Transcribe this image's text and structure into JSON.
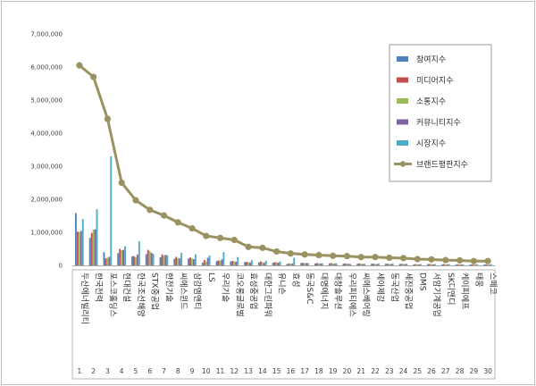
{
  "chart_data": {
    "type": "bar",
    "categories": [
      "두산에너빌리티",
      "한국전력",
      "포스코홀딩스",
      "현대건설",
      "한국조선해양",
      "STX중공업",
      "한전기술",
      "씨에스윈드",
      "삼강엠앤티",
      "LS",
      "우리기술",
      "코오롱글로벌",
      "효성중공업",
      "대한그린파워",
      "유니슨",
      "효성",
      "동국S&C",
      "대명에너지",
      "대창솔루션",
      "우리피티에스",
      "씨에스베어링",
      "세아제강",
      "동국산업",
      "세진중공업",
      "DMS",
      "서암기계공업",
      "SK디앤디",
      "케이피에프",
      "태웅",
      "스페코"
    ],
    "ranks": [
      "1",
      "2",
      "3",
      "4",
      "5",
      "6",
      "7",
      "8",
      "9",
      "10",
      "11",
      "12",
      "13",
      "14",
      "15",
      "16",
      "17",
      "18",
      "19",
      "20",
      "21",
      "22",
      "23",
      "24",
      "25",
      "26",
      "27",
      "28",
      "29",
      "30"
    ],
    "ylim": [
      0,
      7000000
    ],
    "yticks": [
      "0",
      "1,000,000",
      "2,000,000",
      "3,000,000",
      "4,000,000",
      "5,000,000",
      "6,000,000",
      "7,000,000"
    ],
    "grid": false,
    "legend_position": "right",
    "series": [
      {
        "name": "참여지수",
        "kind": "bar",
        "color": "#4f81bd",
        "values": [
          1580000,
          830000,
          400000,
          370000,
          270000,
          340000,
          240000,
          200000,
          210000,
          80000,
          130000,
          120000,
          100000,
          90000,
          80000,
          40000,
          70000,
          60000,
          60000,
          50000,
          50000,
          50000,
          50000,
          40000,
          30000,
          40000,
          30000,
          30000,
          30000,
          30000
        ]
      },
      {
        "name": "미디어지수",
        "kind": "bar",
        "color": "#c0504d",
        "values": [
          1020000,
          980000,
          210000,
          500000,
          280000,
          470000,
          330000,
          260000,
          240000,
          160000,
          150000,
          140000,
          110000,
          120000,
          100000,
          60000,
          80000,
          70000,
          70000,
          60000,
          60000,
          50000,
          50000,
          50000,
          40000,
          40000,
          40000,
          30000,
          30000,
          30000
        ]
      },
      {
        "name": "소통지수",
        "kind": "bar",
        "color": "#9bbb59",
        "values": [
          1010000,
          1080000,
          230000,
          460000,
          250000,
          430000,
          290000,
          220000,
          210000,
          120000,
          140000,
          120000,
          90000,
          100000,
          90000,
          50000,
          60000,
          60000,
          60000,
          50000,
          50000,
          40000,
          40000,
          40000,
          30000,
          40000,
          30000,
          30000,
          30000,
          30000
        ]
      },
      {
        "name": "커뮤니티지수",
        "kind": "bar",
        "color": "#8064a2",
        "values": [
          1040000,
          1090000,
          260000,
          470000,
          330000,
          380000,
          320000,
          210000,
          190000,
          230000,
          180000,
          110000,
          90000,
          80000,
          80000,
          60000,
          70000,
          60000,
          50000,
          50000,
          40000,
          40000,
          40000,
          40000,
          30000,
          30000,
          30000,
          30000,
          20000,
          20000
        ]
      },
      {
        "name": "시장지수",
        "kind": "bar",
        "color": "#4bacc6",
        "values": [
          1400000,
          1700000,
          3300000,
          580000,
          730000,
          350000,
          300000,
          380000,
          330000,
          300000,
          400000,
          250000,
          160000,
          140000,
          120000,
          230000,
          70000,
          60000,
          60000,
          40000,
          50000,
          60000,
          60000,
          50000,
          40000,
          40000,
          40000,
          30000,
          40000,
          40000
        ]
      },
      {
        "name": "브랜드평판지수",
        "kind": "line",
        "color": "#9b9262",
        "values": [
          6050000,
          5700000,
          4430000,
          2500000,
          1970000,
          1680000,
          1510000,
          1300000,
          1120000,
          890000,
          830000,
          770000,
          560000,
          530000,
          420000,
          360000,
          330000,
          310000,
          290000,
          280000,
          250000,
          250000,
          230000,
          220000,
          190000,
          180000,
          160000,
          150000,
          130000,
          130000
        ]
      }
    ]
  }
}
